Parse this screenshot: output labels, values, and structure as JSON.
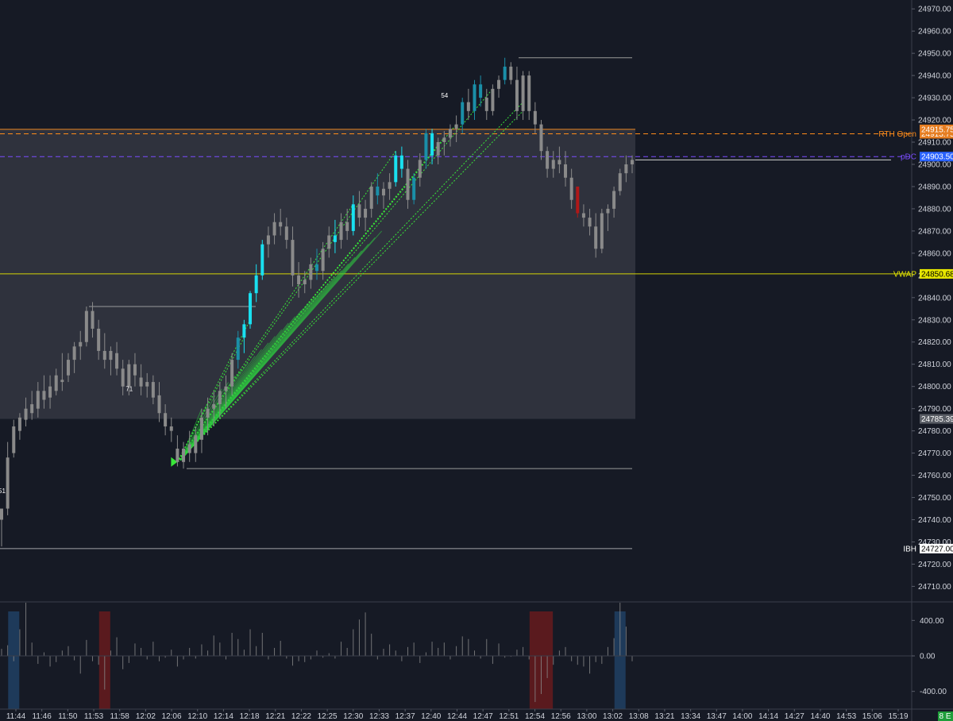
{
  "chart_data": {
    "type": "candlestick",
    "price_axis": {
      "ticks": [
        "24970.00",
        "24960.00",
        "24950.00",
        "24940.00",
        "24930.00",
        "24920.00",
        "24910.00",
        "24900.00",
        "24890.00",
        "24880.00",
        "24870.00",
        "24860.00",
        "24850.00",
        "24840.00",
        "24830.00",
        "24820.00",
        "24810.00",
        "24800.00",
        "24790.00",
        "24780.00",
        "24770.00",
        "24760.00",
        "24750.00",
        "24740.00",
        "24730.00",
        "24720.00",
        "24710.00"
      ],
      "range": [
        24703,
        24974
      ]
    },
    "time_axis": {
      "ticks": [
        "11:44",
        "11:46",
        "11:50",
        "11:53",
        "11:58",
        "12:02",
        "12:06",
        "12:10",
        "12:14",
        "12:18",
        "12:21",
        "12:22",
        "12:25",
        "12:30",
        "12:33",
        "12:37",
        "12:40",
        "12:44",
        "12:47",
        "12:51",
        "12:54",
        "12:56",
        "13:00",
        "13:02",
        "13:08",
        "13:21",
        "13:34",
        "13:47",
        "14:00",
        "14:14",
        "14:27",
        "14:40",
        "14:53",
        "15:06",
        "15:19"
      ]
    },
    "levels": [
      {
        "label": "RTH Open",
        "value": "24913.75",
        "price": 24913.75,
        "color": "#ff8c1a",
        "style": "dashed"
      },
      {
        "label": "",
        "value": "24915.75",
        "price": 24915.75,
        "color": "#ff8c1a",
        "style": "solid"
      },
      {
        "label": "pDC",
        "value": "24903.50",
        "price": 24903.5,
        "color": "#7b4dff",
        "style": "dashed"
      },
      {
        "label": "VWAP",
        "value": "24850.68",
        "price": 24850.68,
        "color": "#e6e600",
        "style": "solid"
      },
      {
        "label": "",
        "value": "24785.39",
        "price": 24785.39,
        "color": "#7a7a7a",
        "style": "none"
      },
      {
        "label": "IBH",
        "value": "24727.00",
        "price": 24727.0,
        "color": "#ffffff",
        "style": "solid"
      }
    ],
    "last_price": 24902.0,
    "value_area": {
      "high": 24916,
      "low": 24785.39
    },
    "candles": [
      {
        "o": 24740,
        "h": 24745,
        "l": 24728,
        "c": 24745,
        "color": "gray"
      },
      {
        "o": 24745,
        "h": 24775,
        "l": 24742,
        "c": 24768,
        "color": "gray"
      },
      {
        "o": 24770,
        "h": 24785,
        "l": 24768,
        "c": 24782,
        "color": "gray"
      },
      {
        "o": 24780,
        "h": 24788,
        "l": 24776,
        "c": 24786,
        "color": "gray"
      },
      {
        "o": 24785,
        "h": 24795,
        "l": 24782,
        "c": 24790,
        "color": "gray"
      },
      {
        "o": 24792,
        "h": 24798,
        "l": 24785,
        "c": 24788,
        "color": "gray"
      },
      {
        "o": 24790,
        "h": 24802,
        "l": 24786,
        "c": 24798,
        "color": "gray"
      },
      {
        "o": 24798,
        "h": 24805,
        "l": 24790,
        "c": 24794,
        "color": "gray"
      },
      {
        "o": 24795,
        "h": 24805,
        "l": 24790,
        "c": 24800,
        "color": "gray"
      },
      {
        "o": 24798,
        "h": 24808,
        "l": 24796,
        "c": 24805,
        "color": "gray"
      },
      {
        "o": 24803,
        "h": 24815,
        "l": 24798,
        "c": 24802,
        "color": "gray"
      },
      {
        "o": 24805,
        "h": 24815,
        "l": 24802,
        "c": 24812,
        "color": "gray"
      },
      {
        "o": 24812,
        "h": 24820,
        "l": 24806,
        "c": 24818,
        "color": "gray"
      },
      {
        "o": 24818,
        "h": 24825,
        "l": 24812,
        "c": 24820,
        "color": "gray"
      },
      {
        "o": 24820,
        "h": 24836,
        "l": 24818,
        "c": 24834,
        "color": "gray"
      },
      {
        "o": 24834,
        "h": 24838,
        "l": 24822,
        "c": 24826,
        "color": "gray"
      },
      {
        "o": 24826,
        "h": 24830,
        "l": 24812,
        "c": 24816,
        "color": "gray"
      },
      {
        "o": 24816,
        "h": 24824,
        "l": 24808,
        "c": 24812,
        "color": "gray"
      },
      {
        "o": 24812,
        "h": 24818,
        "l": 24805,
        "c": 24816,
        "color": "gray"
      },
      {
        "o": 24815,
        "h": 24820,
        "l": 24805,
        "c": 24808,
        "color": "gray"
      },
      {
        "o": 24808,
        "h": 24812,
        "l": 24796,
        "c": 24800,
        "color": "gray"
      },
      {
        "o": 24800,
        "h": 24812,
        "l": 24796,
        "c": 24810,
        "color": "gray"
      },
      {
        "o": 24810,
        "h": 24815,
        "l": 24800,
        "c": 24805,
        "color": "gray"
      },
      {
        "o": 24804,
        "h": 24810,
        "l": 24796,
        "c": 24800,
        "color": "gray"
      },
      {
        "o": 24800,
        "h": 24806,
        "l": 24795,
        "c": 24802,
        "color": "gray"
      },
      {
        "o": 24802,
        "h": 24805,
        "l": 24792,
        "c": 24795,
        "color": "gray"
      },
      {
        "o": 24796,
        "h": 24802,
        "l": 24784,
        "c": 24788,
        "color": "gray"
      },
      {
        "o": 24788,
        "h": 24792,
        "l": 24778,
        "c": 24782,
        "color": "gray"
      },
      {
        "o": 24782,
        "h": 24786,
        "l": 24775,
        "c": 24780,
        "color": "gray"
      },
      {
        "o": 24772,
        "h": 24778,
        "l": 24764,
        "c": 24766,
        "color": "gray"
      },
      {
        "o": 24766,
        "h": 24775,
        "l": 24763,
        "c": 24772,
        "color": "gray"
      },
      {
        "o": 24770,
        "h": 24780,
        "l": 24766,
        "c": 24774,
        "color": "gray"
      },
      {
        "o": 24770,
        "h": 24782,
        "l": 24766,
        "c": 24778,
        "color": "gray"
      },
      {
        "o": 24776,
        "h": 24790,
        "l": 24770,
        "c": 24786,
        "color": "gray"
      },
      {
        "o": 24786,
        "h": 24795,
        "l": 24778,
        "c": 24790,
        "color": "gray"
      },
      {
        "o": 24790,
        "h": 24798,
        "l": 24782,
        "c": 24792,
        "color": "gray"
      },
      {
        "o": 24792,
        "h": 24802,
        "l": 24786,
        "c": 24798,
        "color": "gray"
      },
      {
        "o": 24798,
        "h": 24805,
        "l": 24790,
        "c": 24800,
        "color": "gray"
      },
      {
        "o": 24800,
        "h": 24815,
        "l": 24796,
        "c": 24812,
        "color": "gray"
      },
      {
        "o": 24812,
        "h": 24825,
        "l": 24808,
        "c": 24822,
        "color": "teal"
      },
      {
        "o": 24822,
        "h": 24830,
        "l": 24815,
        "c": 24828,
        "color": "cyan"
      },
      {
        "o": 24828,
        "h": 24843,
        "l": 24826,
        "c": 24842,
        "color": "cyan"
      },
      {
        "o": 24842,
        "h": 24855,
        "l": 24838,
        "c": 24850,
        "color": "cyan"
      },
      {
        "o": 24850,
        "h": 24866,
        "l": 24848,
        "c": 24864,
        "color": "cyan"
      },
      {
        "o": 24864,
        "h": 24872,
        "l": 24858,
        "c": 24868,
        "color": "gray"
      },
      {
        "o": 24868,
        "h": 24878,
        "l": 24864,
        "c": 24874,
        "color": "gray"
      },
      {
        "o": 24874,
        "h": 24880,
        "l": 24868,
        "c": 24872,
        "color": "gray"
      },
      {
        "o": 24872,
        "h": 24876,
        "l": 24862,
        "c": 24866,
        "color": "gray"
      },
      {
        "o": 24866,
        "h": 24872,
        "l": 24845,
        "c": 24850,
        "color": "gray"
      },
      {
        "o": 24850,
        "h": 24856,
        "l": 24840,
        "c": 24846,
        "color": "gray"
      },
      {
        "o": 24846,
        "h": 24852,
        "l": 24842,
        "c": 24848,
        "color": "gray"
      },
      {
        "o": 24848,
        "h": 24858,
        "l": 24844,
        "c": 24855,
        "color": "gray"
      },
      {
        "o": 24855,
        "h": 24862,
        "l": 24848,
        "c": 24852,
        "color": "teal"
      },
      {
        "o": 24852,
        "h": 24865,
        "l": 24848,
        "c": 24862,
        "color": "gray"
      },
      {
        "o": 24862,
        "h": 24872,
        "l": 24858,
        "c": 24868,
        "color": "gray"
      },
      {
        "o": 24868,
        "h": 24875,
        "l": 24860,
        "c": 24865,
        "color": "cyan"
      },
      {
        "o": 24866,
        "h": 24878,
        "l": 24862,
        "c": 24874,
        "color": "gray"
      },
      {
        "o": 24874,
        "h": 24880,
        "l": 24866,
        "c": 24870,
        "color": "gray"
      },
      {
        "o": 24870,
        "h": 24886,
        "l": 24868,
        "c": 24882,
        "color": "cyan"
      },
      {
        "o": 24882,
        "h": 24888,
        "l": 24872,
        "c": 24876,
        "color": "gray"
      },
      {
        "o": 24876,
        "h": 24884,
        "l": 24870,
        "c": 24880,
        "color": "gray"
      },
      {
        "o": 24880,
        "h": 24892,
        "l": 24876,
        "c": 24890,
        "color": "gray"
      },
      {
        "o": 24890,
        "h": 24896,
        "l": 24882,
        "c": 24886,
        "color": "teal"
      },
      {
        "o": 24886,
        "h": 24892,
        "l": 24880,
        "c": 24889,
        "color": "gray"
      },
      {
        "o": 24889,
        "h": 24896,
        "l": 24884,
        "c": 24892,
        "color": "gray"
      },
      {
        "o": 24892,
        "h": 24906,
        "l": 24890,
        "c": 24904,
        "color": "cyan"
      },
      {
        "o": 24904,
        "h": 24908,
        "l": 24894,
        "c": 24898,
        "color": "cyan"
      },
      {
        "o": 24898,
        "h": 24902,
        "l": 24880,
        "c": 24884,
        "color": "gray"
      },
      {
        "o": 24884,
        "h": 24896,
        "l": 24882,
        "c": 24894,
        "color": "teal"
      },
      {
        "o": 24894,
        "h": 24905,
        "l": 24890,
        "c": 24902,
        "color": "gray"
      },
      {
        "o": 24902,
        "h": 24916,
        "l": 24898,
        "c": 24914,
        "color": "teal"
      },
      {
        "o": 24914,
        "h": 24916,
        "l": 24900,
        "c": 24904,
        "color": "cyan"
      },
      {
        "o": 24904,
        "h": 24912,
        "l": 24900,
        "c": 24910,
        "color": "gray"
      },
      {
        "o": 24910,
        "h": 24915,
        "l": 24904,
        "c": 24912,
        "color": "gray"
      },
      {
        "o": 24912,
        "h": 24918,
        "l": 24908,
        "c": 24916,
        "color": "gray"
      },
      {
        "o": 24916,
        "h": 24922,
        "l": 24910,
        "c": 24918,
        "color": "gray"
      },
      {
        "o": 24918,
        "h": 24930,
        "l": 24914,
        "c": 24928,
        "color": "teal"
      },
      {
        "o": 24928,
        "h": 24934,
        "l": 24920,
        "c": 24924,
        "color": "gray"
      },
      {
        "o": 24924,
        "h": 24938,
        "l": 24920,
        "c": 24936,
        "color": "teal"
      },
      {
        "o": 24936,
        "h": 24940,
        "l": 24926,
        "c": 24930,
        "color": "teal"
      },
      {
        "o": 24930,
        "h": 24934,
        "l": 24920,
        "c": 24924,
        "color": "gray"
      },
      {
        "o": 24924,
        "h": 24936,
        "l": 24922,
        "c": 24934,
        "color": "gray"
      },
      {
        "o": 24934,
        "h": 24940,
        "l": 24930,
        "c": 24938,
        "color": "gray"
      },
      {
        "o": 24938,
        "h": 24948,
        "l": 24936,
        "c": 24944,
        "color": "teal"
      },
      {
        "o": 24944,
        "h": 24946,
        "l": 24936,
        "c": 24938,
        "color": "gray"
      },
      {
        "o": 24938,
        "h": 24944,
        "l": 24920,
        "c": 24924,
        "color": "gray"
      },
      {
        "o": 24924,
        "h": 24942,
        "l": 24920,
        "c": 24940,
        "color": "gray"
      },
      {
        "o": 24940,
        "h": 24942,
        "l": 24920,
        "c": 24924,
        "color": "gray"
      },
      {
        "o": 24924,
        "h": 24928,
        "l": 24914,
        "c": 24918,
        "color": "gray"
      },
      {
        "o": 24918,
        "h": 24920,
        "l": 24902,
        "c": 24906,
        "color": "gray"
      },
      {
        "o": 24906,
        "h": 24908,
        "l": 24894,
        "c": 24898,
        "color": "gray"
      },
      {
        "o": 24898,
        "h": 24906,
        "l": 24894,
        "c": 24902,
        "color": "gray"
      },
      {
        "o": 24902,
        "h": 24908,
        "l": 24896,
        "c": 24900,
        "color": "gray"
      },
      {
        "o": 24900,
        "h": 24906,
        "l": 24890,
        "c": 24894,
        "color": "gray"
      },
      {
        "o": 24894,
        "h": 24898,
        "l": 24880,
        "c": 24884,
        "color": "gray"
      },
      {
        "o": 24890,
        "h": 24890,
        "l": 24876,
        "c": 24878,
        "color": "red"
      },
      {
        "o": 24878,
        "h": 24882,
        "l": 24872,
        "c": 24876,
        "color": "gray"
      },
      {
        "o": 24876,
        "h": 24880,
        "l": 24868,
        "c": 24872,
        "color": "gray"
      },
      {
        "o": 24872,
        "h": 24878,
        "l": 24858,
        "c": 24862,
        "color": "gray"
      },
      {
        "o": 24862,
        "h": 24880,
        "l": 24860,
        "c": 24878,
        "color": "gray"
      },
      {
        "o": 24878,
        "h": 24882,
        "l": 24870,
        "c": 24880,
        "color": "gray"
      },
      {
        "o": 24880,
        "h": 24890,
        "l": 24876,
        "c": 24888,
        "color": "gray"
      },
      {
        "o": 24888,
        "h": 24898,
        "l": 24886,
        "c": 24896,
        "color": "gray"
      },
      {
        "o": 24896,
        "h": 24904,
        "l": 24892,
        "c": 24900,
        "color": "gray"
      },
      {
        "o": 24900,
        "h": 24904,
        "l": 24896,
        "c": 24902,
        "color": "gray"
      }
    ],
    "annotations": [
      {
        "text": "51",
        "candle": 0,
        "price": 24752
      },
      {
        "text": "71",
        "candle": 21,
        "price": 24798
      },
      {
        "text": "54",
        "candle": 73,
        "price": 24930
      }
    ],
    "oscillator": {
      "ticks": [
        "400.00",
        "0.00",
        "-400.00"
      ],
      "range": [
        -600,
        600
      ],
      "values": [
        80,
        120,
        -60,
        300,
        600,
        150,
        -90,
        40,
        -120,
        -70,
        60,
        110,
        -50,
        -200,
        180,
        -60,
        -100,
        -380,
        60,
        210,
        -150,
        -80,
        140,
        90,
        -40,
        160,
        -60,
        -20,
        70,
        -120,
        -40,
        90,
        -30,
        130,
        60,
        230,
        150,
        -40,
        260,
        190,
        70,
        300,
        110,
        260,
        -40,
        90,
        170,
        -30,
        -110,
        -60,
        -70,
        -40,
        60,
        -20,
        30,
        -30,
        160,
        90,
        300,
        410,
        490,
        250,
        -40,
        80,
        130,
        60,
        -60,
        100,
        150,
        -80,
        40,
        160,
        90,
        150,
        -40,
        110,
        220,
        190,
        60,
        -30,
        190,
        -90,
        140,
        -20,
        -10,
        70,
        100,
        -40,
        -520,
        -430,
        -250,
        -100,
        60,
        100,
        -60,
        -100,
        -120,
        -200,
        -70,
        -90,
        100,
        200,
        600,
        330,
        -60
      ],
      "highlight_bars": [
        {
          "candle": 2,
          "color": "blue"
        },
        {
          "candle": 17,
          "color": "red"
        },
        {
          "candle": 88,
          "color": "red"
        },
        {
          "candle": 89,
          "color": "red"
        },
        {
          "candle": 90,
          "color": "red"
        },
        {
          "candle": 102,
          "color": "blue"
        }
      ]
    },
    "title": "",
    "xlabel": "",
    "ylabel": ""
  },
  "badge": "8 E"
}
